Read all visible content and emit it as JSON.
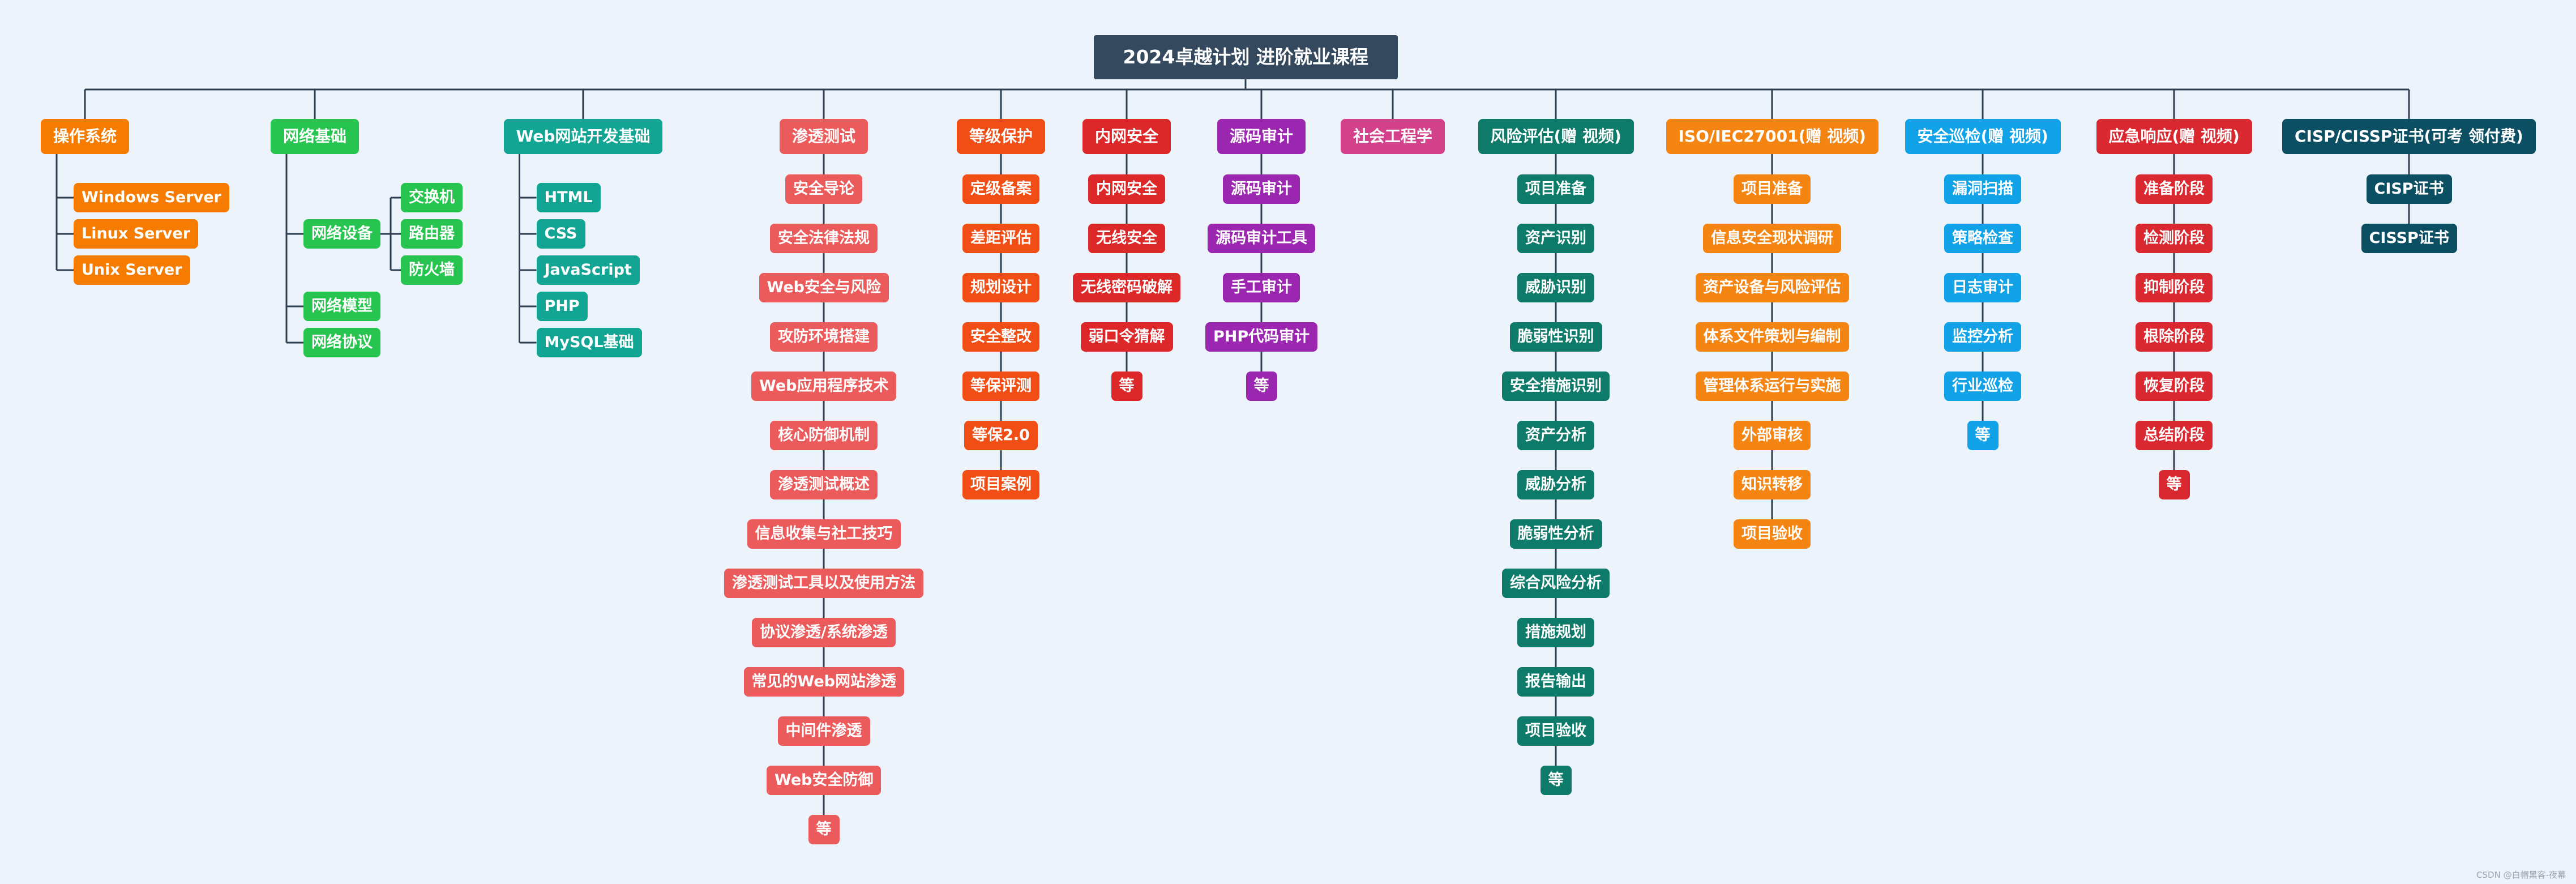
{
  "title": "2024卓越计划 进阶就业课程",
  "watermark": "CSDN @白帽黑客-夜幕",
  "colors": {
    "root": "#34495e",
    "line": "#2d3e50",
    "background": "#edf3fb"
  },
  "categories": [
    {
      "label": "操作系统",
      "color": "#f57c00",
      "layout": "tree",
      "children": [
        {
          "label": "Windows Server"
        },
        {
          "label": "Linux Server"
        },
        {
          "label": "Unix Server"
        }
      ]
    },
    {
      "label": "网络基础",
      "color": "#27c44f",
      "layout": "tree",
      "children": [
        {
          "label": "网络设备",
          "children": [
            "交换机",
            "路由器",
            "防火墙"
          ]
        },
        {
          "label": "网络模型"
        },
        {
          "label": "网络协议"
        }
      ]
    },
    {
      "label": "Web网站开发基础",
      "color": "#12a594",
      "layout": "tree",
      "children": [
        {
          "label": "HTML"
        },
        {
          "label": "CSS"
        },
        {
          "label": "JavaScript"
        },
        {
          "label": "PHP"
        },
        {
          "label": "MySQL基础"
        }
      ]
    },
    {
      "label": "渗透测试",
      "color": "#eb5b5b",
      "layout": "list",
      "items": [
        "安全导论",
        "安全法律法规",
        "Web安全与风险",
        "攻防环境搭建",
        "Web应用程序技术",
        "核心防御机制",
        "渗透测试概述",
        "信息收集与社工技巧",
        "渗透测试工具以及使用方法",
        "协议渗透/系统渗透",
        "常见的Web网站渗透",
        "中间件渗透",
        "Web安全防御",
        "等"
      ]
    },
    {
      "label": "等级保护",
      "color": "#f04e14",
      "layout": "list",
      "items": [
        "定级备案",
        "差距评估",
        "规划设计",
        "安全整改",
        "等保评测",
        "等保2.0",
        "项目案例"
      ]
    },
    {
      "label": "内网安全",
      "color": "#dc2828",
      "layout": "list",
      "items": [
        "内网安全",
        "无线安全",
        "无线密码破解",
        "弱口令猜解",
        "等"
      ]
    },
    {
      "label": "源码审计",
      "color": "#9b27b0",
      "layout": "list",
      "items": [
        "源码审计",
        "源码审计工具",
        "手工审计",
        "PHP代码审计",
        "等"
      ]
    },
    {
      "label": "社会工程学",
      "color": "#d2418a",
      "layout": "list",
      "items": []
    },
    {
      "label": "风险评估(赠 视频)",
      "color": "#0d7a6a",
      "layout": "list",
      "items": [
        "项目准备",
        "资产识别",
        "威胁识别",
        "脆弱性识别",
        "安全措施识别",
        "资产分析",
        "威胁分析",
        "脆弱性分析",
        "综合风险分析",
        "措施规划",
        "报告输出",
        "项目验收",
        "等"
      ]
    },
    {
      "label": "ISO/IEC27001(赠 视频)",
      "color": "#f58512",
      "layout": "list",
      "items": [
        "项目准备",
        "信息安全现状调研",
        "资产设备与风险评估",
        "体系文件策划与编制",
        "管理体系运行与实施",
        "外部审核",
        "知识转移",
        "项目验收"
      ]
    },
    {
      "label": "安全巡检(赠 视频)",
      "color": "#11a2e8",
      "layout": "list",
      "items": [
        "漏洞扫描",
        "策略检查",
        "日志审计",
        "监控分析",
        "行业巡检",
        "等"
      ]
    },
    {
      "label": "应急响应(赠 视频)",
      "color": "#d9282f",
      "layout": "list",
      "items": [
        "准备阶段",
        "检测阶段",
        "抑制阶段",
        "根除阶段",
        "恢复阶段",
        "总结阶段",
        "等"
      ]
    },
    {
      "label": "CISP/CISSP证书(可考 领付费)",
      "color": "#0c4f63",
      "layout": "list",
      "items": [
        "CISP证书",
        "CISSP证书"
      ]
    }
  ]
}
